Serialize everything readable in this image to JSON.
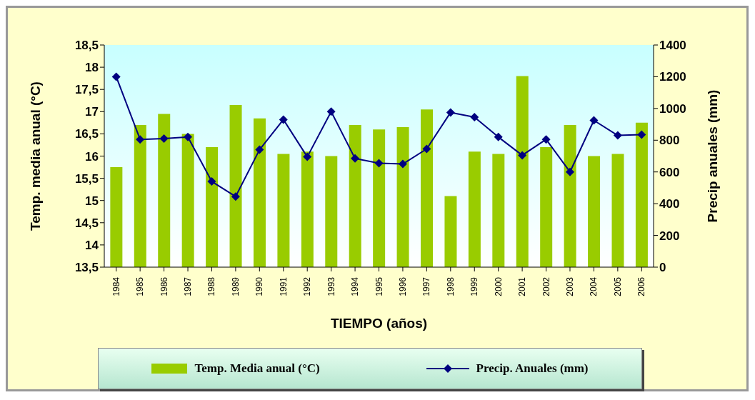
{
  "chart_data": {
    "type": "bar",
    "xlabel": "TIEMPO (años)",
    "ylabel": "Temp. media anual (°C)",
    "y2label": "Precip anuales (mm)",
    "categories": [
      "1984",
      "1985",
      "1986",
      "1987",
      "1988",
      "1989",
      "1990",
      "1991",
      "1992",
      "1993",
      "1994",
      "1995",
      "1996",
      "1997",
      "1998",
      "1999",
      "2000",
      "2001",
      "2002",
      "2003",
      "2004",
      "2005",
      "2006"
    ],
    "series": [
      {
        "name": "Temp. Media anual (°C)",
        "color": "#99cc00",
        "values": [
          15.75,
          16.7,
          16.95,
          16.5,
          16.2,
          17.15,
          16.85,
          16.05,
          16.1,
          16.0,
          16.7,
          16.6,
          16.65,
          17.05,
          15.1,
          16.1,
          16.05,
          17.8,
          16.2,
          16.7,
          16.0,
          16.05,
          16.75
        ]
      },
      {
        "name": "Precip. Anuales (mm)",
        "type": "line",
        "axis": "y2",
        "color": "#000080",
        "marker": "diamond",
        "values": [
          1200,
          805,
          810,
          820,
          540,
          445,
          740,
          930,
          695,
          980,
          685,
          655,
          650,
          745,
          975,
          945,
          820,
          705,
          805,
          600,
          925,
          830,
          835
        ]
      }
    ],
    "ylim": [
      13.5,
      18.5
    ],
    "yticks": [
      {
        "value": 13.5,
        "label": "13,5"
      },
      14,
      {
        "value": 14.5,
        "label": "14,5"
      },
      15,
      {
        "value": 15.5,
        "label": "15,5"
      },
      16,
      {
        "value": 16.5,
        "label": "16,5"
      },
      17,
      {
        "value": 17.5,
        "label": "17,5"
      },
      18,
      {
        "value": 18.5,
        "label": "18,5"
      }
    ],
    "y2lim": [
      0,
      1400
    ],
    "y2ticks": [
      0,
      200,
      400,
      600,
      800,
      1000,
      1200,
      1400
    ],
    "legend": "bottom"
  }
}
